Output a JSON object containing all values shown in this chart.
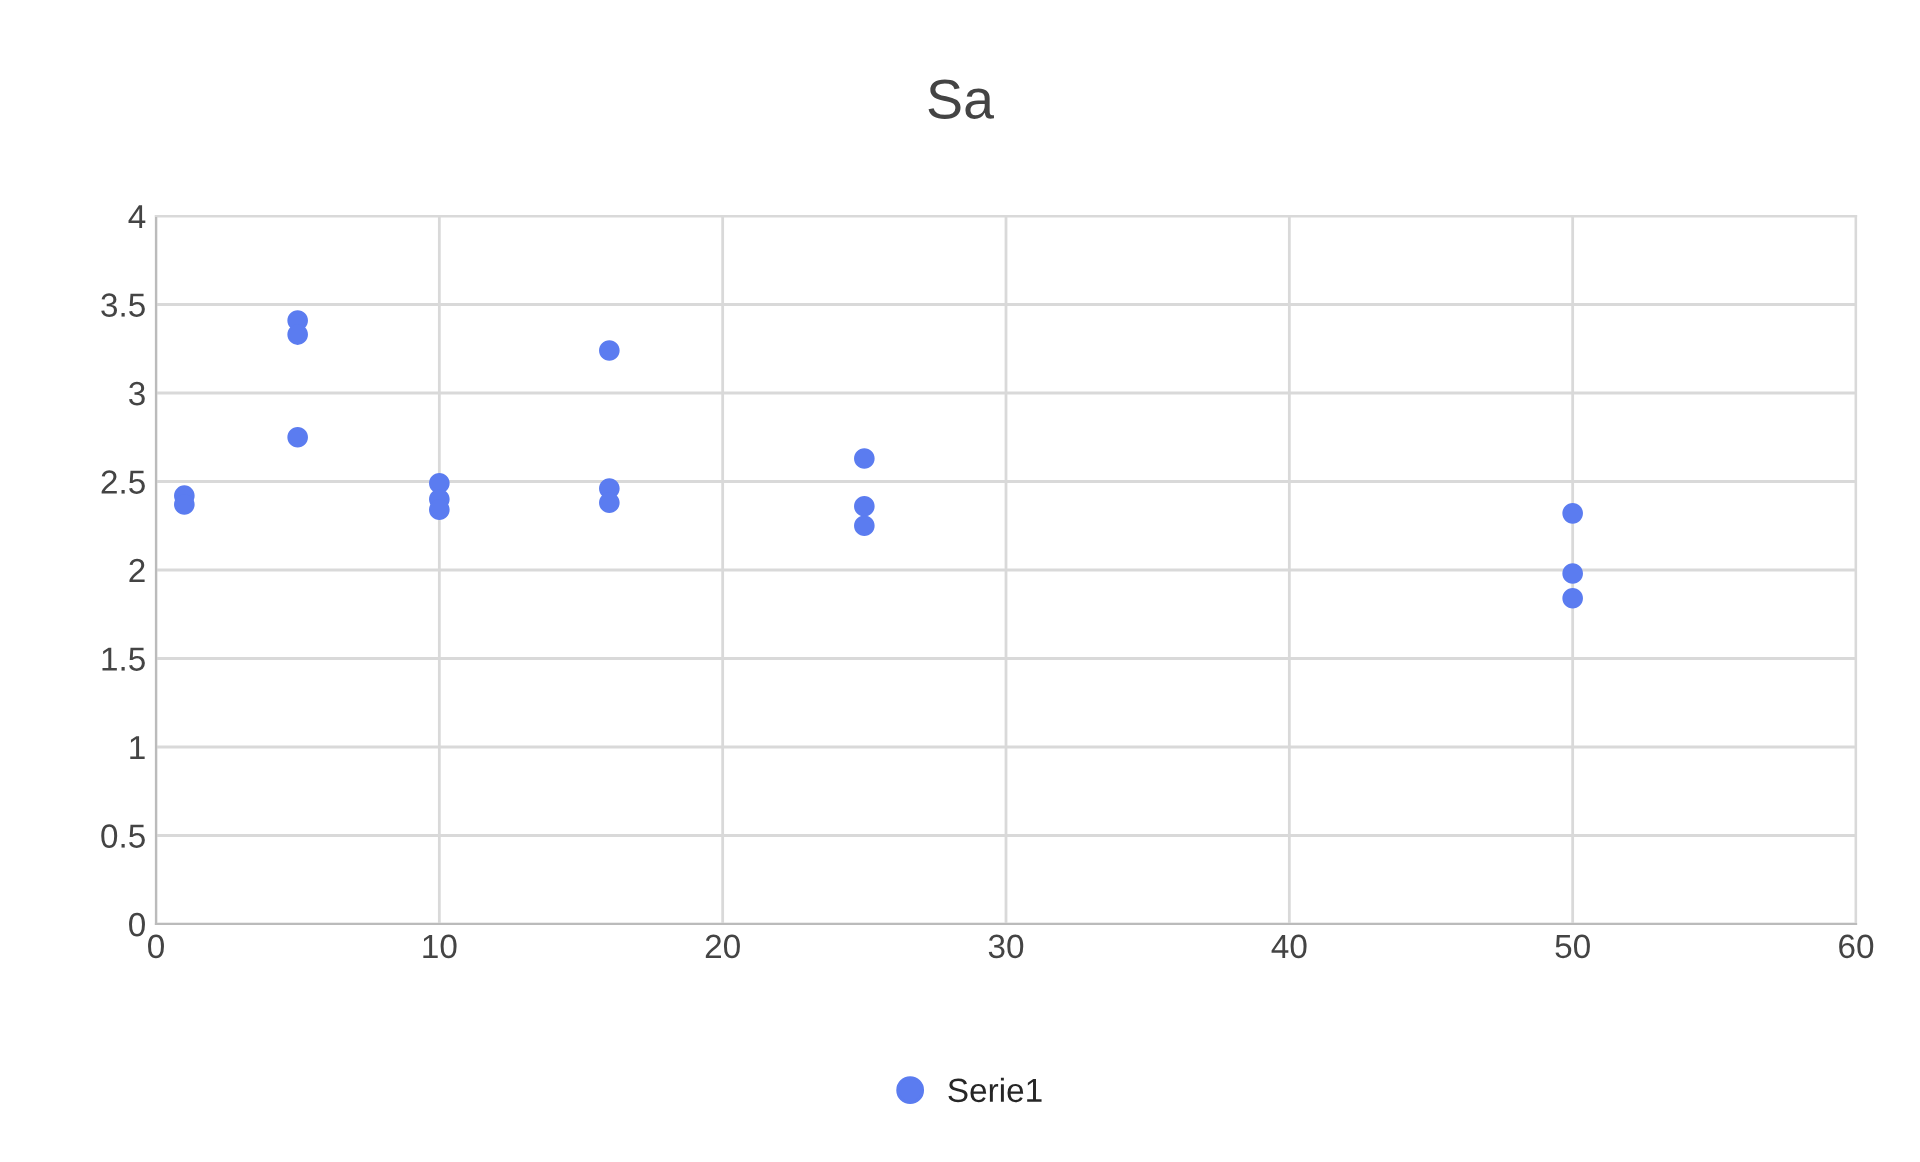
{
  "chart_data": {
    "type": "scatter",
    "title": "Sa",
    "series": [
      {
        "name": "Serie1",
        "color": "#5b7cf0",
        "x": [
          1,
          1,
          5,
          5,
          5,
          10,
          10,
          10,
          16,
          16,
          16,
          25,
          25,
          25,
          50,
          50,
          50
        ],
        "values": [
          2.42,
          2.37,
          3.41,
          3.33,
          2.75,
          2.49,
          2.4,
          2.34,
          3.24,
          2.46,
          2.38,
          2.63,
          2.36,
          2.25,
          2.32,
          1.98,
          1.84
        ]
      }
    ],
    "xlim": [
      0,
      60
    ],
    "xticks": [
      0,
      10,
      20,
      30,
      40,
      50,
      60
    ],
    "ylim": [
      0,
      4
    ],
    "yticks": [
      0,
      0.5,
      1,
      1.5,
      2,
      2.5,
      3,
      3.5,
      4
    ],
    "grid": true,
    "legend": "bottom",
    "marker": "circle"
  }
}
